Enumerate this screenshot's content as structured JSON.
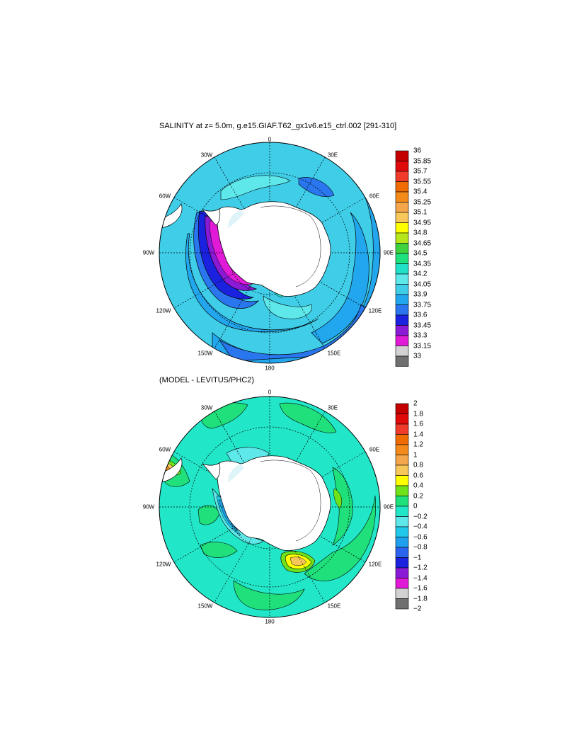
{
  "panels": [
    {
      "id": "salinity",
      "title": "SALINITY at z=   5.0m, g.e15.GIAF.T62_gx1v6.e15_ctrl.002 [291-310]",
      "lon_labels": [
        "0",
        "30E",
        "60E",
        "90E",
        "120E",
        "150E",
        "180",
        "150W",
        "120W",
        "90W",
        "60W",
        "30W"
      ],
      "colorbar": {
        "labels": [
          "36",
          "35.85",
          "35.7",
          "35.55",
          "35.4",
          "35.25",
          "35.1",
          "34.95",
          "34.8",
          "34.65",
          "34.5",
          "34.35",
          "34.2",
          "34.05",
          "33.9",
          "33.75",
          "33.6",
          "33.45",
          "33.3",
          "33.15",
          "33"
        ],
        "colors": [
          "#c40000",
          "#e00a0a",
          "#f03a2a",
          "#f06b00",
          "#f38a1a",
          "#f5a64a",
          "#f8c75a",
          "#ffff00",
          "#b7e61a",
          "#3ed23e",
          "#1de07e",
          "#20e0c8",
          "#5ee8ea",
          "#3fcde8",
          "#22a7ee",
          "#2a76ee",
          "#1a22e0",
          "#8a1ad6",
          "#e01ad6",
          "#d2d2d2",
          "#707070"
        ]
      }
    },
    {
      "id": "difference",
      "title": "(MODEL - LEVITUS/PHC2)",
      "lon_labels": [
        "0",
        "30E",
        "60E",
        "90E",
        "120E",
        "150E",
        "180",
        "150W",
        "120W",
        "90W",
        "60W",
        "30W"
      ],
      "colorbar": {
        "labels": [
          "2",
          "1.8",
          "1.6",
          "1.4",
          "1.2",
          "1",
          "0.8",
          "0.6",
          "0.4",
          "0.2",
          "0",
          "−0.2",
          "−0.4",
          "−0.6",
          "−0.8",
          "−1",
          "−1.2",
          "−1.4",
          "−1.6",
          "−1.8",
          "−2"
        ],
        "colors": [
          "#c40000",
          "#e00a0a",
          "#f03a2a",
          "#f06b00",
          "#f38a1a",
          "#f5a64a",
          "#f8c75a",
          "#ffff00",
          "#6fe21a",
          "#1fe07a",
          "#22e6c8",
          "#5ee8ea",
          "#22c8ea",
          "#1fa0ee",
          "#2a64ee",
          "#1a22e0",
          "#8a1ad6",
          "#e01ad6",
          "#d2d2d2",
          "#707070"
        ]
      }
    }
  ],
  "colors": {
    "salinity_base": "#3fcde8",
    "difference_base": "#22e6c8",
    "land": "#ffffff",
    "ice_shelf": "#dff4f8"
  }
}
